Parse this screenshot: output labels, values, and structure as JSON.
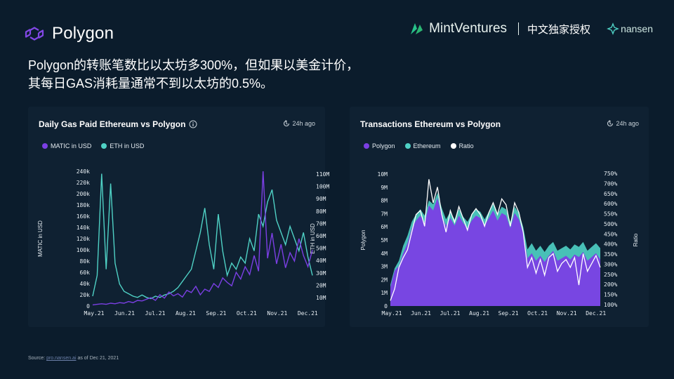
{
  "header": {
    "logo_text": "Polygon",
    "brand_mint": "MintVentures",
    "brand_cn": "中文独家授权",
    "brand_nansen": "nansen",
    "headline_line1": "Polygon的转账笔数比以太坊多300%，但如果以美金计价，",
    "headline_line2": "其每日GAS消耗量通常不到以太坊的0.5%。"
  },
  "source": {
    "prefix": "Source:",
    "link": "pro.nansen.ai",
    "suffix": "as of Dec 21, 2021"
  },
  "colors": {
    "polygon": "#7b3fe4",
    "ethereum": "#4fd1c5",
    "ratio": "#ffffff",
    "bg": "#0b1c2c",
    "panel": "#0f2132"
  },
  "chart_data": [
    {
      "type": "line",
      "title": "Daily Gas Paid Ethereum vs Polygon",
      "updated": "24h ago",
      "xlabel": "",
      "ylabel": "MATIC in USD",
      "y2label": "ETH in USD",
      "x_ticks": [
        "May.21",
        "Jun.21",
        "Jul.21",
        "Aug.21",
        "Sep.21",
        "Oct.21",
        "Nov.21",
        "Dec.21"
      ],
      "y_ticks": [
        "0",
        "20k",
        "40k",
        "60k",
        "80k",
        "100k",
        "120k",
        "140k",
        "160k",
        "180k",
        "200k",
        "220k",
        "240k"
      ],
      "y2_ticks": [
        "10M",
        "20M",
        "30M",
        "40M",
        "50M",
        "60M",
        "70M",
        "80M",
        "90M",
        "100M",
        "110M"
      ],
      "ylim": [
        0,
        240000
      ],
      "y2lim": [
        0,
        110000000
      ],
      "legend": [
        "MATIC in USD",
        "ETH in USD"
      ],
      "series": [
        {
          "name": "MATIC in USD",
          "axis": "left",
          "values": [
            2000,
            3000,
            4000,
            3000,
            5000,
            4000,
            6000,
            5000,
            8000,
            6000,
            10000,
            9000,
            12000,
            15000,
            10000,
            20000,
            14000,
            25000,
            18000,
            22000,
            16000,
            28000,
            24000,
            35000,
            20000,
            30000,
            26000,
            40000,
            33000,
            50000,
            42000,
            36000,
            60000,
            48000,
            70000,
            56000,
            90000,
            62000,
            240000,
            85000,
            130000,
            75000,
            110000,
            68000,
            95000,
            80000,
            120000,
            90000,
            70000,
            100000
          ]
        },
        {
          "name": "ETH in USD",
          "axis": "right",
          "values": [
            8000000,
            25000000,
            108000000,
            30000000,
            100000000,
            35000000,
            18000000,
            12000000,
            10000000,
            8000000,
            7000000,
            9000000,
            7000000,
            6000000,
            8000000,
            7000000,
            9000000,
            10000000,
            12000000,
            15000000,
            20000000,
            25000000,
            30000000,
            45000000,
            60000000,
            80000000,
            50000000,
            30000000,
            75000000,
            45000000,
            25000000,
            35000000,
            30000000,
            40000000,
            35000000,
            55000000,
            45000000,
            75000000,
            65000000,
            85000000,
            95000000,
            70000000,
            60000000,
            50000000,
            65000000,
            55000000,
            45000000,
            60000000,
            40000000,
            25000000
          ]
        }
      ]
    },
    {
      "type": "area",
      "title": "Transactions Ethereum vs Polygon",
      "updated": "24h ago",
      "ylabel": "Polygon",
      "y2label": "Ratio",
      "x_ticks": [
        "May.21",
        "Jun.21",
        "Jul.21",
        "Aug.21",
        "Sep.21",
        "Oct.21",
        "Nov.21",
        "Dec.21"
      ],
      "y_ticks": [
        "0",
        "1M",
        "2M",
        "3M",
        "4M",
        "5M",
        "6M",
        "7M",
        "8M",
        "9M",
        "10M"
      ],
      "y2_ticks": [
        "100%",
        "150%",
        "200%",
        "250%",
        "300%",
        "350%",
        "400%",
        "450%",
        "500%",
        "550%",
        "600%",
        "650%",
        "700%",
        "750%"
      ],
      "ylim": [
        0,
        10500000
      ],
      "y2lim": [
        100,
        770
      ],
      "legend": [
        "Polygon",
        "Ethereum",
        "Ratio"
      ],
      "series": [
        {
          "name": "Polygon",
          "axis": "left",
          "values": [
            1500000,
            2800000,
            3200000,
            4200000,
            5000000,
            6200000,
            6800000,
            7200000,
            6600000,
            8000000,
            7600000,
            8600000,
            7200000,
            6400000,
            7000000,
            6400000,
            7200000,
            6600000,
            6200000,
            6800000,
            7200000,
            7000000,
            6400000,
            7000000,
            7600000,
            6800000,
            7400000,
            7200000,
            6200000,
            7400000,
            6900000,
            5800000,
            3800000,
            4200000,
            3600000,
            4000000,
            3500000,
            4000000,
            4400000,
            3600000,
            3800000,
            4000000,
            3700000,
            4100000,
            3900000,
            4300000,
            3600000,
            3900000,
            4200000,
            3700000
          ]
        },
        {
          "name": "Ethereum",
          "axis": "left",
          "values": [
            1700000,
            3000000,
            3600000,
            4800000,
            5600000,
            6700000,
            7300000,
            7700000,
            7200000,
            8400000,
            8100000,
            9000000,
            7800000,
            6900000,
            7500000,
            6900000,
            7700000,
            7100000,
            6700000,
            7300000,
            7700000,
            7500000,
            6900000,
            7500000,
            8100000,
            7300000,
            7900000,
            7700000,
            6700000,
            7900000,
            7400000,
            6300000,
            4500000,
            5000000,
            4400000,
            4800000,
            4300000,
            4800000,
            5100000,
            4400000,
            4600000,
            4800000,
            4500000,
            4900000,
            4700000,
            5100000,
            4400000,
            4700000,
            5000000,
            4600000
          ]
        },
        {
          "name": "Ratio",
          "axis": "right",
          "values": [
            120,
            180,
            290,
            340,
            380,
            470,
            560,
            580,
            500,
            740,
            620,
            700,
            560,
            470,
            580,
            520,
            600,
            540,
            480,
            560,
            590,
            560,
            500,
            570,
            620,
            560,
            640,
            610,
            500,
            620,
            570,
            470,
            290,
            340,
            260,
            330,
            250,
            340,
            360,
            270,
            310,
            330,
            290,
            340,
            200,
            360,
            270,
            310,
            350,
            290
          ]
        }
      ]
    }
  ]
}
